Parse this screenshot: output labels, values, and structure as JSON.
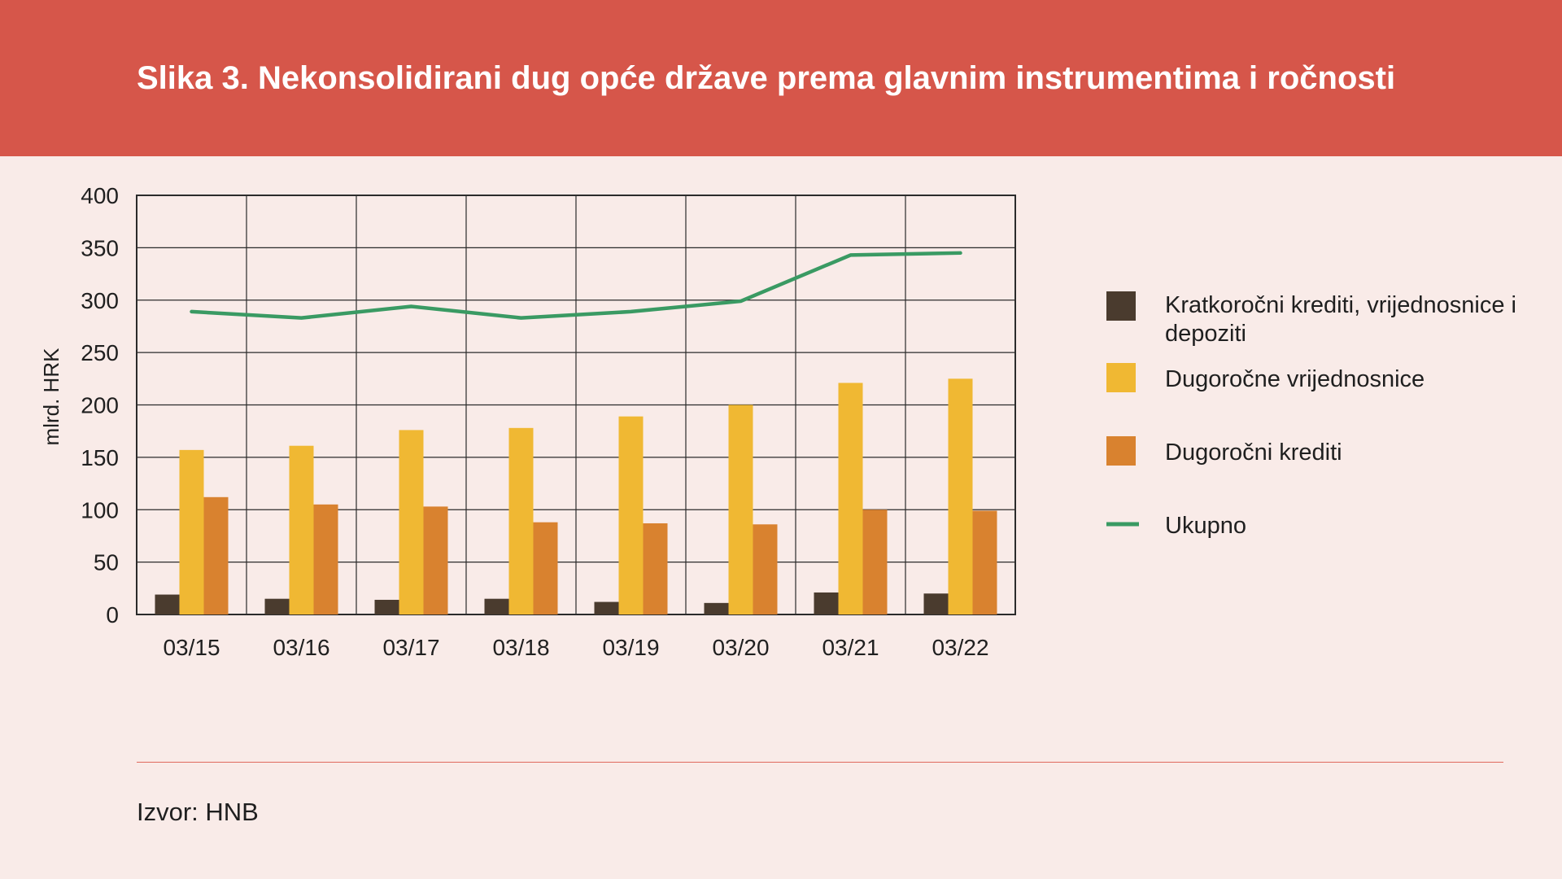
{
  "header": {
    "title": "Slika 3. Nekonsolidirani dug opće države prema glavnim instrumentima i ročnosti"
  },
  "footer": {
    "source": "Izvor: HNB"
  },
  "colors": {
    "header_bg": "#d6564a",
    "page_bg": "#f9ebe8",
    "series_short": "#4a3b2e",
    "series_long_securities": "#f0b833",
    "series_long_loans": "#d9822f",
    "series_total": "#3a9a63"
  },
  "chart_data": {
    "type": "bar",
    "title": "Slika 3. Nekonsolidirani dug opće države prema glavnim instrumentima i ročnosti",
    "xlabel": "",
    "ylabel": "mlrd. HRK",
    "ylim": [
      0,
      400
    ],
    "yticks": [
      0,
      50,
      100,
      150,
      200,
      250,
      300,
      350,
      400
    ],
    "grid": true,
    "legend": "right",
    "categories": [
      "03/15",
      "03/16",
      "03/17",
      "03/18",
      "03/19",
      "03/20",
      "03/21",
      "03/22"
    ],
    "series": [
      {
        "name": "Kratkoročni krediti, vrijednosnice i depoziti",
        "type": "bar",
        "color": "#4a3b2e",
        "values": [
          19,
          15,
          14,
          15,
          12,
          11,
          21,
          20
        ]
      },
      {
        "name": "Dugoročne vrijednosnice",
        "type": "bar",
        "color": "#f0b833",
        "values": [
          157,
          161,
          176,
          178,
          189,
          200,
          221,
          225
        ]
      },
      {
        "name": "Dugoročni krediti",
        "type": "bar",
        "color": "#d9822f",
        "values": [
          112,
          105,
          103,
          88,
          87,
          86,
          100,
          99
        ]
      },
      {
        "name": "Ukupno",
        "type": "line",
        "color": "#3a9a63",
        "values": [
          289,
          283,
          294,
          283,
          289,
          299,
          343,
          345
        ]
      }
    ]
  }
}
